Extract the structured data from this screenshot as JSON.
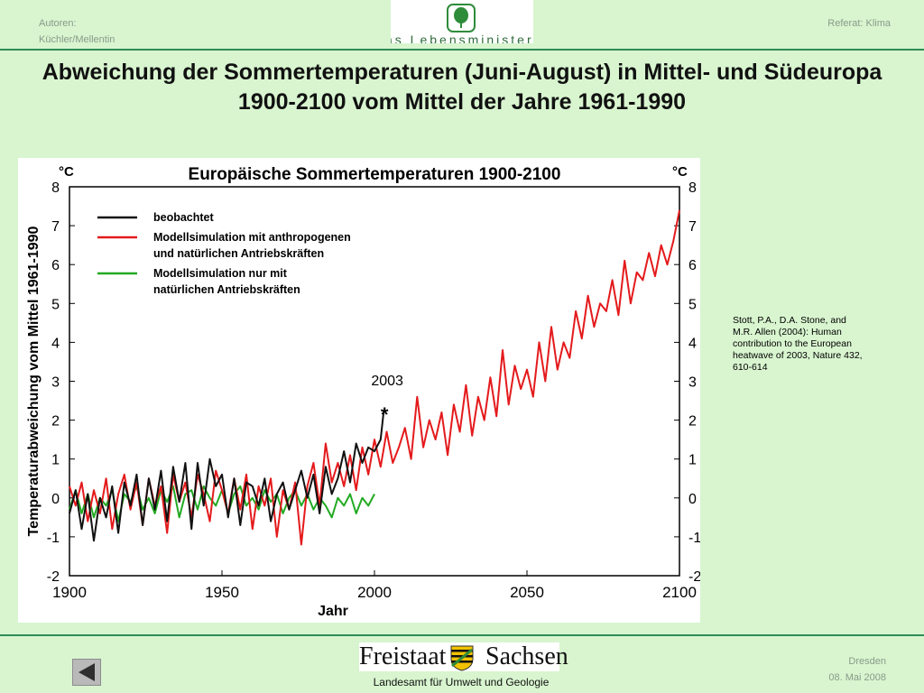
{
  "header": {
    "authors_label": "Autoren:",
    "authors_names": "Küchler/Mellentin",
    "referat": "Referat: Klima",
    "logo_text": "as Lebensministerium"
  },
  "slide_title": "Abweichung der Sommertemperaturen (Juni-August) in Mittel- und Südeuropa 1900-2100 vom Mittel der Jahre 1961-1990",
  "citation": "Stott, P.A., D.A. Stone, and M.R. Allen (2004): Human contribution to the European heatwave of 2003, Nature 432, 610-614",
  "footer": {
    "logo_left": "Freistaat",
    "logo_right": "Sachsen",
    "agency": "Landesamt für Umwelt und Geologie",
    "city": "Dresden",
    "date": "08. Mai 2008"
  },
  "colors": {
    "background": "#d8f5cf",
    "observed": "#111111",
    "anthro": "#e41a1c",
    "natural": "#22aa22"
  },
  "chart_data": {
    "type": "line",
    "title": "Europäische Sommertemperaturen 1900-2100",
    "xlabel": "Jahr",
    "ylabel": "Temperaturabweichung vom Mittel 1961-1990",
    "y_unit_left": "°C",
    "y_unit_right": "°C",
    "xlim": [
      1900,
      2100
    ],
    "ylim": [
      -2,
      8
    ],
    "xticks": [
      1900,
      1950,
      2000,
      2050,
      2100
    ],
    "yticks": [
      -2,
      -1,
      0,
      1,
      2,
      3,
      4,
      5,
      6,
      7,
      8
    ],
    "legend_position": "top-left",
    "annotation": {
      "label": "2003",
      "marker": "*",
      "x": 2003,
      "y": 2.2
    },
    "series": [
      {
        "name": "beobachtet",
        "color": "#111111",
        "x": [
          1900,
          1902,
          1904,
          1906,
          1908,
          1910,
          1912,
          1914,
          1916,
          1918,
          1920,
          1922,
          1924,
          1926,
          1928,
          1930,
          1932,
          1934,
          1936,
          1938,
          1940,
          1942,
          1944,
          1946,
          1948,
          1950,
          1952,
          1954,
          1956,
          1958,
          1960,
          1962,
          1964,
          1966,
          1968,
          1970,
          1972,
          1974,
          1976,
          1978,
          1980,
          1982,
          1984,
          1986,
          1988,
          1990,
          1992,
          1994,
          1996,
          1998,
          2000,
          2002,
          2003
        ],
        "y": [
          -0.4,
          0.2,
          -0.8,
          0.1,
          -1.1,
          0.0,
          -0.5,
          0.3,
          -0.9,
          0.4,
          -0.2,
          0.6,
          -0.7,
          0.5,
          -0.3,
          0.7,
          -0.6,
          0.8,
          -0.1,
          0.9,
          -0.8,
          0.9,
          -0.2,
          1.0,
          0.3,
          0.6,
          -0.5,
          0.5,
          -0.7,
          0.4,
          0.3,
          -0.2,
          0.5,
          -0.6,
          0.1,
          0.4,
          -0.3,
          0.2,
          0.7,
          0.0,
          0.6,
          -0.4,
          0.8,
          0.1,
          0.5,
          1.2,
          0.4,
          1.4,
          0.9,
          1.3,
          1.2,
          1.5,
          2.2
        ]
      },
      {
        "name": "Modellsimulation mit anthropogenen und natürlichen Antriebskräften",
        "color": "#e41a1c",
        "x": [
          1900,
          1902,
          1904,
          1906,
          1908,
          1910,
          1912,
          1914,
          1916,
          1918,
          1920,
          1922,
          1924,
          1926,
          1928,
          1930,
          1932,
          1934,
          1936,
          1938,
          1940,
          1942,
          1944,
          1946,
          1948,
          1950,
          1952,
          1954,
          1956,
          1958,
          1960,
          1962,
          1964,
          1966,
          1968,
          1970,
          1972,
          1974,
          1976,
          1978,
          1980,
          1982,
          1984,
          1986,
          1988,
          1990,
          1992,
          1994,
          1996,
          1998,
          2000,
          2002,
          2004,
          2006,
          2008,
          2010,
          2012,
          2014,
          2016,
          2018,
          2020,
          2022,
          2024,
          2026,
          2028,
          2030,
          2032,
          2034,
          2036,
          2038,
          2040,
          2042,
          2044,
          2046,
          2048,
          2050,
          2052,
          2054,
          2056,
          2058,
          2060,
          2062,
          2064,
          2066,
          2068,
          2070,
          2072,
          2074,
          2076,
          2078,
          2080,
          2082,
          2084,
          2086,
          2088,
          2090,
          2092,
          2094,
          2096,
          2098,
          2100
        ],
        "y": [
          0.3,
          -0.2,
          0.4,
          -0.6,
          0.2,
          -0.4,
          0.5,
          -0.8,
          0.1,
          0.6,
          -0.3,
          0.4,
          -0.7,
          0.5,
          -0.2,
          0.3,
          -0.9,
          0.6,
          -0.1,
          0.4,
          -0.5,
          0.6,
          0.1,
          -0.6,
          0.7,
          0.2,
          -0.4,
          0.5,
          -0.3,
          0.6,
          -0.8,
          0.3,
          -0.2,
          0.5,
          -1.0,
          0.2,
          -0.3,
          0.4,
          -1.2,
          0.3,
          0.9,
          -0.2,
          1.4,
          0.4,
          0.9,
          0.3,
          1.1,
          0.2,
          1.3,
          0.6,
          1.5,
          0.8,
          1.7,
          0.9,
          1.3,
          1.8,
          1.0,
          2.6,
          1.3,
          2.0,
          1.5,
          2.2,
          1.1,
          2.4,
          1.7,
          2.9,
          1.6,
          2.6,
          2.0,
          3.1,
          2.1,
          3.8,
          2.4,
          3.4,
          2.8,
          3.3,
          2.6,
          4.0,
          3.0,
          4.4,
          3.3,
          4.0,
          3.6,
          4.8,
          4.1,
          5.2,
          4.4,
          5.0,
          4.8,
          5.6,
          4.7,
          6.1,
          5.0,
          5.8,
          5.6,
          6.3,
          5.7,
          6.5,
          6.0,
          6.6,
          7.4
        ]
      },
      {
        "name": "Modellsimulation nur mit natürlichen Antriebskräften",
        "color": "#22aa22",
        "x": [
          1900,
          1902,
          1904,
          1906,
          1908,
          1910,
          1912,
          1914,
          1916,
          1918,
          1920,
          1922,
          1924,
          1926,
          1928,
          1930,
          1932,
          1934,
          1936,
          1938,
          1940,
          1942,
          1944,
          1946,
          1948,
          1950,
          1952,
          1954,
          1956,
          1958,
          1960,
          1962,
          1964,
          1966,
          1968,
          1970,
          1972,
          1974,
          1976,
          1978,
          1980,
          1982,
          1984,
          1986,
          1988,
          1990,
          1992,
          1994,
          1996,
          1998,
          2000
        ],
        "y": [
          -0.3,
          0.2,
          -0.4,
          0.1,
          -0.5,
          0.0,
          -0.2,
          0.2,
          -0.6,
          0.1,
          -0.1,
          0.3,
          -0.3,
          0.0,
          -0.4,
          0.2,
          -0.1,
          0.3,
          -0.5,
          0.1,
          0.2,
          -0.3,
          0.3,
          0.0,
          -0.2,
          0.2,
          -0.4,
          0.1,
          0.3,
          -0.2,
          0.0,
          -0.3,
          0.2,
          -0.1,
          0.1,
          -0.4,
          0.0,
          0.2,
          -0.2,
          0.1,
          -0.3,
          0.0,
          -0.2,
          -0.5,
          0.0,
          -0.2,
          0.1,
          -0.4,
          0.0,
          -0.2,
          0.1
        ]
      }
    ]
  }
}
